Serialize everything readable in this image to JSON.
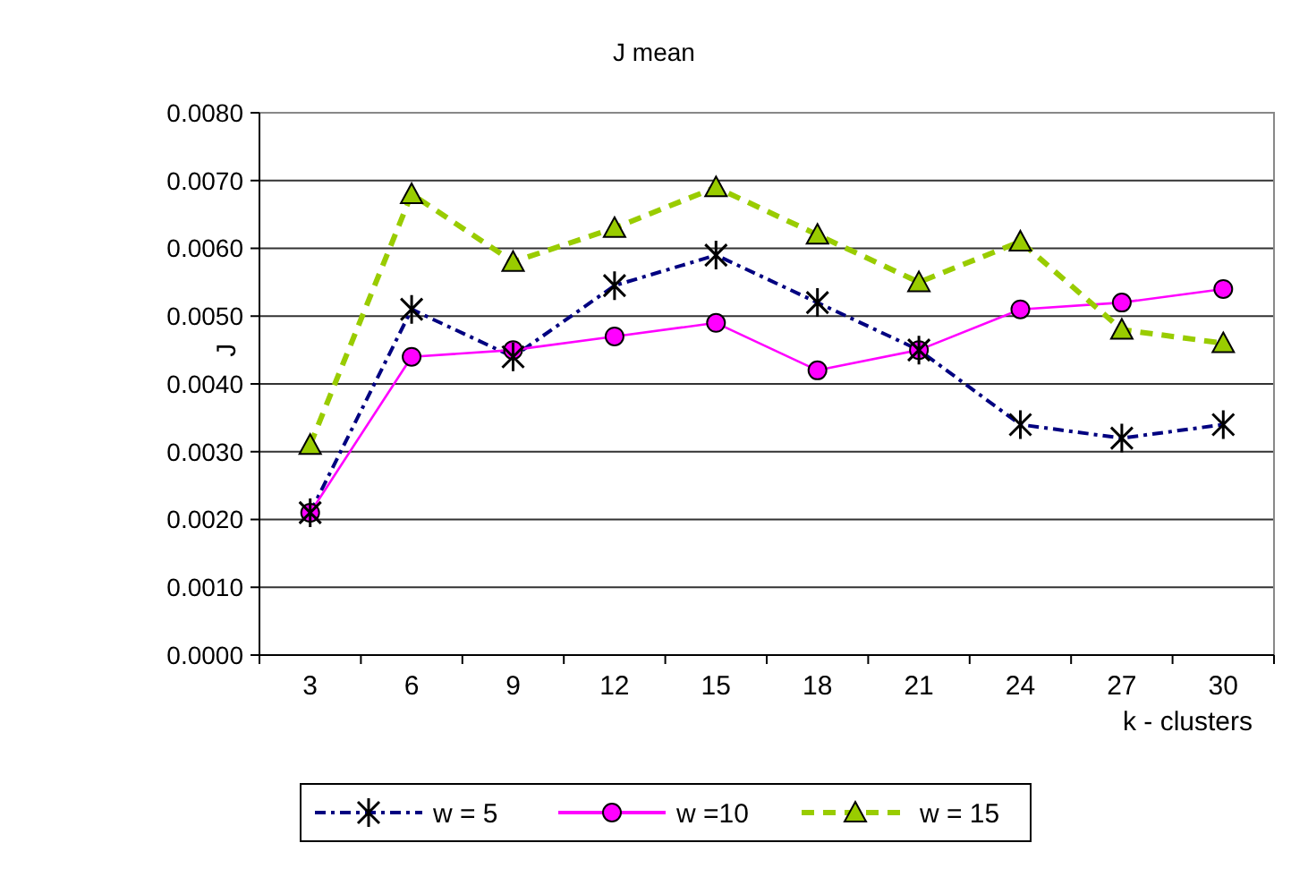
{
  "chart_data": {
    "type": "line",
    "title": "J mean",
    "xlabel": "k - clusters",
    "ylabel": "J",
    "categories": [
      "3",
      "6",
      "9",
      "12",
      "15",
      "18",
      "21",
      "24",
      "27",
      "30"
    ],
    "series": [
      {
        "name": "w = 5",
        "color": "#000080",
        "marker": "cross",
        "line_style": "dashed",
        "values": [
          0.0021,
          0.0051,
          0.0044,
          0.00545,
          0.0059,
          0.0052,
          0.0045,
          0.0034,
          0.0032,
          0.0034
        ]
      },
      {
        "name": "w =10",
        "color": "#ff00ff",
        "marker": "circle",
        "line_style": "solid",
        "values": [
          0.0021,
          0.0044,
          0.0045,
          0.0047,
          0.0049,
          0.0042,
          0.0045,
          0.0051,
          0.0052,
          0.0054
        ]
      },
      {
        "name": "w = 15",
        "color": "#99cc00",
        "marker": "triangle",
        "line_style": "dashed",
        "values": [
          0.0031,
          0.0068,
          0.0058,
          0.0063,
          0.0069,
          0.0062,
          0.0055,
          0.0061,
          0.0048,
          0.0046
        ]
      }
    ],
    "ylim": [
      0,
      0.008
    ],
    "yticks": [
      {
        "value": 0,
        "label": "0.0000"
      },
      {
        "value": 0.001,
        "label": "0.0010"
      },
      {
        "value": 0.002,
        "label": "0.0020"
      },
      {
        "value": 0.003,
        "label": "0.0030"
      },
      {
        "value": 0.004,
        "label": "0.0040"
      },
      {
        "value": 0.005,
        "label": "0.0050"
      },
      {
        "value": 0.006,
        "label": "0.0060"
      },
      {
        "value": 0.007,
        "label": "0.0070"
      },
      {
        "value": 0.008,
        "label": "0.0080"
      }
    ],
    "grid": "y",
    "legend": "bottom"
  }
}
